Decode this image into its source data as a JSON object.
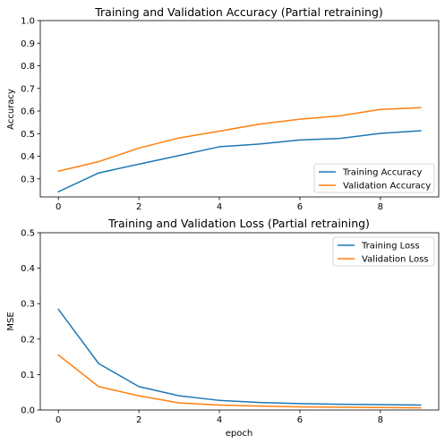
{
  "colors": {
    "series1": "#1f77b4",
    "series2": "#ff7f0e"
  },
  "chart_data": [
    {
      "type": "line",
      "title": "Training and Validation Accuracy (Partial retraining)",
      "xlabel": "",
      "ylabel": "Accuracy",
      "x": [
        0,
        1,
        2,
        3,
        4,
        5,
        6,
        7,
        8,
        9
      ],
      "xlim": [
        -0.45,
        9.45
      ],
      "ylim": [
        0.22,
        1.0
      ],
      "xticks": [
        0,
        2,
        4,
        6,
        8
      ],
      "yticks": [
        0.3,
        0.4,
        0.5,
        0.6,
        0.7,
        0.8,
        0.9,
        1.0
      ],
      "ytick_labels": [
        "0.3",
        "0.4",
        "0.5",
        "0.6",
        "0.7",
        "0.8",
        "0.9",
        "1.0"
      ],
      "legend_position": "lower-right",
      "grid": false,
      "series": [
        {
          "name": "Training Accuracy",
          "color": "#1f77b4",
          "values": [
            0.243,
            0.326,
            0.365,
            0.403,
            0.442,
            0.454,
            0.472,
            0.479,
            0.501,
            0.513
          ]
        },
        {
          "name": "Validation Accuracy",
          "color": "#ff7f0e",
          "values": [
            0.334,
            0.376,
            0.436,
            0.481,
            0.511,
            0.542,
            0.564,
            0.579,
            0.607,
            0.615
          ]
        }
      ]
    },
    {
      "type": "line",
      "title": "Training and Validation Loss (Partial retraining)",
      "xlabel": "epoch",
      "ylabel": "MSE",
      "x": [
        0,
        1,
        2,
        3,
        4,
        5,
        6,
        7,
        8,
        9
      ],
      "xlim": [
        -0.45,
        9.45
      ],
      "ylim": [
        0.0,
        0.5
      ],
      "xticks": [
        0,
        2,
        4,
        6,
        8
      ],
      "yticks": [
        0.0,
        0.1,
        0.2,
        0.3,
        0.4,
        0.5
      ],
      "ytick_labels": [
        "0.0",
        "0.1",
        "0.2",
        "0.3",
        "0.4",
        "0.5"
      ],
      "legend_position": "top-right",
      "grid": false,
      "series": [
        {
          "name": "Training Loss",
          "color": "#1f77b4",
          "values": [
            0.284,
            0.131,
            0.066,
            0.04,
            0.027,
            0.021,
            0.018,
            0.016,
            0.015,
            0.014
          ]
        },
        {
          "name": "Validation Loss",
          "color": "#ff7f0e",
          "values": [
            0.155,
            0.066,
            0.04,
            0.02,
            0.014,
            0.011,
            0.009,
            0.008,
            0.007,
            0.006
          ]
        }
      ]
    }
  ]
}
